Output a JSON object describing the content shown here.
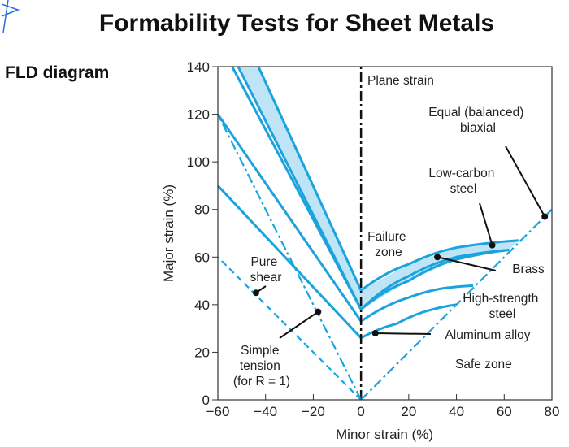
{
  "header": {
    "title": "Formability Tests for Sheet Metals",
    "subtitle": "FLD diagram"
  },
  "colors": {
    "curve": "#1aa3dd",
    "band": "#bfe4f6",
    "leader": "#111111",
    "axis": "#333333"
  },
  "chart_data": {
    "type": "line",
    "xlabel": "Minor strain (%)",
    "ylabel": "Major strain (%)",
    "xlim": [
      -60,
      80
    ],
    "ylim": [
      0,
      140
    ],
    "xticks": [
      -60,
      -40,
      -20,
      0,
      20,
      40,
      60,
      80
    ],
    "yticks": [
      0,
      20,
      40,
      60,
      80,
      100,
      120,
      140
    ],
    "grid": false,
    "reference_lines": [
      {
        "label": "Plane strain",
        "style": "dash-dot",
        "points": [
          [
            0,
            0
          ],
          [
            0,
            140
          ]
        ]
      },
      {
        "label": "Equal (balanced) biaxial",
        "style": "dash-dot",
        "points": [
          [
            0,
            0
          ],
          [
            80,
            80
          ]
        ]
      },
      {
        "label": "Simple tension (for R = 1)",
        "style": "dash-dot",
        "points": [
          [
            0,
            0
          ],
          [
            -60,
            120
          ]
        ]
      },
      {
        "label": "Pure shear",
        "style": "dashed",
        "points": [
          [
            0,
            0
          ],
          [
            -60,
            60
          ]
        ]
      }
    ],
    "forming_limit_bands": [
      {
        "label": "Low-carbon steel",
        "upper": [
          [
            -43,
            140
          ],
          [
            0,
            46
          ],
          [
            20,
            57
          ],
          [
            40,
            64
          ],
          [
            66,
            67
          ]
        ],
        "lower": [
          [
            -51.5,
            140
          ],
          [
            0,
            38
          ],
          [
            20,
            50
          ],
          [
            40,
            59
          ],
          [
            62,
            63
          ]
        ]
      }
    ],
    "forming_limit_curves": [
      {
        "label": "Low-carbon steel",
        "points": [
          [
            -54,
            140
          ],
          [
            0,
            38
          ]
        ]
      },
      {
        "label": "Brass",
        "points": [
          [
            0,
            38
          ],
          [
            20,
            52
          ],
          [
            40,
            60
          ],
          [
            62,
            63
          ]
        ]
      },
      {
        "label": "High-strength steel",
        "points": [
          [
            -60,
            120
          ],
          [
            0,
            33
          ],
          [
            20,
            43
          ],
          [
            35,
            47
          ],
          [
            47,
            48
          ]
        ]
      },
      {
        "label": "Aluminum alloy",
        "points": [
          [
            -60,
            90
          ],
          [
            0,
            26
          ],
          [
            15,
            32
          ],
          [
            30,
            38
          ],
          [
            40,
            40
          ]
        ]
      }
    ],
    "annotations": [
      {
        "text": "Plane strain"
      },
      {
        "text": [
          "Equal (balanced)",
          "biaxial"
        ],
        "point": [
          77,
          77
        ]
      },
      {
        "text": [
          "Low-carbon",
          "steel"
        ],
        "point": [
          55,
          65
        ]
      },
      {
        "text": [
          "Failure",
          "zone"
        ]
      },
      {
        "text": "Brass",
        "point": [
          32,
          60
        ]
      },
      {
        "text": [
          "High-strength",
          "steel"
        ]
      },
      {
        "text": "Aluminum alloy",
        "point": [
          6,
          28
        ]
      },
      {
        "text": "Safe zone"
      },
      {
        "text": [
          "Pure",
          "shear"
        ],
        "point": [
          -44,
          45
        ]
      },
      {
        "text": [
          "Simple",
          "tension",
          "(for R = 1)"
        ],
        "point": [
          -18,
          37
        ]
      }
    ]
  }
}
